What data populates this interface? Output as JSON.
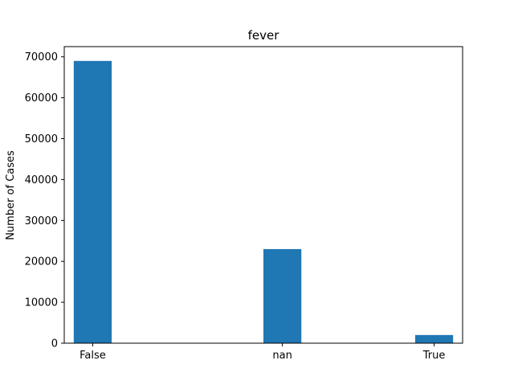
{
  "chart_data": {
    "type": "bar",
    "title": "fever",
    "xlabel": "",
    "ylabel": "Number of Cases",
    "categories": [
      "False",
      "nan",
      "True"
    ],
    "values": [
      69000,
      23000,
      2000
    ],
    "ylim": [
      0,
      72500
    ],
    "yticks": [
      0,
      10000,
      20000,
      30000,
      40000,
      50000,
      60000,
      70000
    ],
    "ytick_labels": [
      "0",
      "10000",
      "20000",
      "30000",
      "40000",
      "50000",
      "60000",
      "70000"
    ],
    "grid": false,
    "legend": "none",
    "bar_color": "#1f77b4"
  }
}
